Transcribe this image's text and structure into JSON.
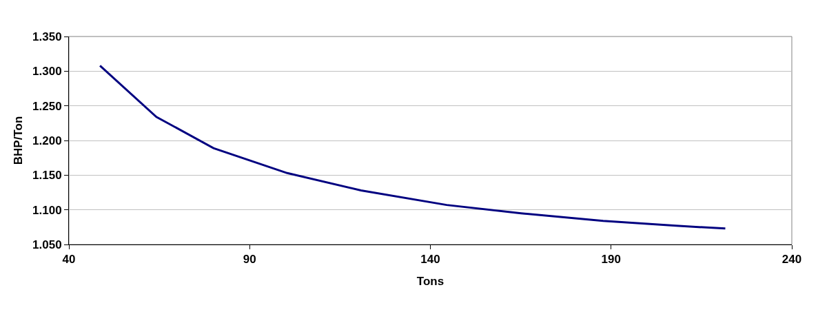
{
  "chart_data": {
    "type": "line",
    "xlabel": "Tons",
    "ylabel": "BHP/Ton",
    "x": [
      48.6,
      64.2,
      80,
      100.4,
      120.8,
      144.5,
      165.1,
      187.8,
      208,
      221.6
    ],
    "series": [
      {
        "color": "#000080",
        "values": [
          1.308,
          1.234,
          1.189,
          1.153,
          1.128,
          1.107,
          1.095,
          1.084,
          1.077,
          1.073
        ]
      }
    ],
    "xlim": [
      40,
      240
    ],
    "xticks": [
      40,
      90,
      140,
      190,
      240
    ],
    "ylim": [
      1.05,
      1.35
    ],
    "yticks": [
      {
        "value": 1.05,
        "label": "1.050"
      },
      {
        "value": 1.1,
        "label": "1.100"
      },
      {
        "value": 1.15,
        "label": "1.150"
      },
      {
        "value": 1.2,
        "label": "1.200"
      },
      {
        "value": 1.25,
        "label": "1.250"
      },
      {
        "value": 1.3,
        "label": "1.300"
      },
      {
        "value": 1.35,
        "label": "1.350"
      }
    ],
    "grid": "y",
    "marker": "none",
    "line_style": "solid"
  }
}
